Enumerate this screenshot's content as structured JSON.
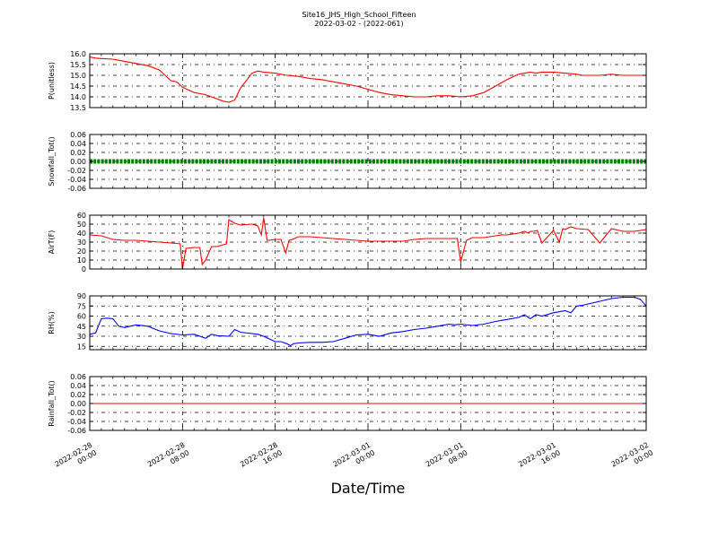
{
  "figure": {
    "title_line1": "Site16_JHS_High_School_Fifteen",
    "title_line2": "2022-03-02 - (2022-061)",
    "xlabel": "Date/Time"
  },
  "chart_data": [
    {
      "type": "line",
      "ylabel": "P(unitless)",
      "ylim": [
        13.5,
        16.0
      ],
      "yticks": [
        "13.5",
        "14.0",
        "14.5",
        "15.0",
        "15.5",
        "16.0"
      ],
      "grid": true,
      "x_unit": "hours since 2022-02-28 00:00",
      "series": [
        {
          "color": "#ff0000",
          "x": [
            0,
            0.5,
            1,
            2,
            3,
            4,
            5,
            6,
            6.5,
            7,
            7.5,
            8,
            9,
            10,
            10.5,
            11,
            11.5,
            12,
            12.5,
            13,
            14,
            14.5,
            15,
            16,
            17,
            18,
            19,
            20,
            21,
            22,
            23,
            24,
            25,
            26,
            27,
            28,
            29,
            30,
            31,
            32,
            33,
            34,
            35,
            36,
            37,
            38,
            38.5,
            39,
            40,
            41,
            42,
            42.5,
            43,
            44,
            45,
            46,
            47,
            48
          ],
          "values": [
            15.85,
            15.8,
            15.78,
            15.75,
            15.65,
            15.55,
            15.45,
            15.25,
            15.0,
            14.75,
            14.7,
            14.45,
            14.2,
            14.1,
            14.0,
            13.9,
            13.8,
            13.75,
            13.85,
            14.4,
            15.1,
            15.2,
            15.15,
            15.1,
            15.0,
            14.95,
            14.85,
            14.8,
            14.7,
            14.6,
            14.5,
            14.35,
            14.2,
            14.1,
            14.05,
            14.0,
            14.0,
            14.05,
            14.05,
            14.0,
            14.05,
            14.2,
            14.5,
            14.8,
            15.05,
            15.15,
            15.1,
            15.15,
            15.15,
            15.1,
            15.05,
            15.0,
            15.0,
            15.0,
            15.05,
            15.0,
            15.0,
            15.0
          ]
        }
      ]
    },
    {
      "type": "line",
      "ylabel": "Snowfall_Tot()",
      "ylim": [
        -0.06,
        0.06
      ],
      "yticks": [
        "-0.06",
        "-0.04",
        "-0.02",
        "0.00",
        "0.02",
        "0.04",
        "0.06"
      ],
      "grid": true,
      "x_unit": "hours since 2022-02-28 00:00",
      "series": [
        {
          "color": "#008000",
          "marker": "dot",
          "x": [
            0,
            48
          ],
          "values": [
            0.0,
            0.0
          ]
        }
      ]
    },
    {
      "type": "line",
      "ylabel": "AirT(F)",
      "ylim": [
        0,
        60
      ],
      "yticks": [
        "0",
        "10",
        "20",
        "30",
        "40",
        "50",
        "60"
      ],
      "grid": true,
      "x_unit": "hours since 2022-02-28 00:00",
      "series": [
        {
          "color": "#ff0000",
          "x": [
            0,
            1,
            2,
            3,
            4,
            5,
            6,
            7,
            7.5,
            7.8,
            8.0,
            8.3,
            9.0,
            9.5,
            9.7,
            10.0,
            10.5,
            11.0,
            11.5,
            11.8,
            12.0,
            12.5,
            13,
            14,
            14.5,
            14.8,
            15.0,
            15.3,
            15.5,
            16.0,
            16.5,
            16.9,
            17.2,
            17.5,
            18,
            19,
            20,
            21,
            22,
            23,
            24,
            25,
            26,
            27,
            28,
            29,
            30,
            31,
            31.5,
            31.7,
            32.0,
            32.5,
            33,
            34,
            35,
            35.5,
            36,
            37,
            37.5,
            37.8,
            38.0,
            38.3,
            38.6,
            39,
            40,
            40.5,
            40.8,
            41,
            41.5,
            42,
            43,
            44,
            45,
            46,
            47,
            48
          ],
          "values": [
            38,
            37,
            33,
            32,
            32,
            31,
            30,
            29,
            28.5,
            28,
            0,
            23,
            24,
            24,
            5,
            10,
            25,
            25,
            27,
            28,
            55,
            51,
            49,
            50,
            48,
            38,
            57,
            32,
            32,
            33,
            33,
            18,
            32,
            33,
            36,
            36,
            35,
            34,
            33,
            32,
            31,
            31,
            31,
            31,
            33,
            34,
            34,
            34,
            34,
            34,
            8,
            32,
            35,
            35,
            37,
            38,
            38,
            40,
            42,
            40,
            42,
            42,
            43,
            29,
            43,
            30,
            45,
            44,
            47,
            45,
            44,
            29,
            45,
            42,
            42,
            44
          ]
        }
      ]
    },
    {
      "type": "line",
      "ylabel": "RH(%)",
      "ylim": [
        10,
        90
      ],
      "yticks": [
        "15",
        "30",
        "45",
        "60",
        "75",
        "90"
      ],
      "grid": true,
      "x_unit": "hours since 2022-02-28 00:00",
      "series": [
        {
          "color": "#0000ff",
          "x": [
            0,
            0.5,
            1,
            1.5,
            2,
            2.5,
            3,
            4,
            5,
            6,
            7,
            8,
            9,
            10,
            10.5,
            11,
            12,
            12.5,
            13,
            14,
            14.5,
            15,
            15.5,
            16,
            16.5,
            17,
            17.3,
            17.6,
            18,
            19,
            20,
            21,
            22,
            23,
            24,
            25,
            26,
            27,
            28,
            29,
            30,
            31,
            31.5,
            32,
            33,
            34,
            35,
            36,
            37,
            37.5,
            38,
            38.5,
            39,
            40,
            41,
            41.5,
            42,
            42.5,
            43,
            44,
            45,
            46,
            47,
            47.5,
            48
          ],
          "values": [
            33,
            35,
            56,
            57,
            56,
            45,
            43,
            47,
            45,
            38,
            34,
            32,
            33,
            27,
            33,
            31,
            30,
            40,
            36,
            34,
            33,
            30,
            26,
            22,
            22,
            19,
            16,
            19,
            20,
            21,
            21,
            22,
            27,
            32,
            33,
            30,
            35,
            37,
            40,
            42,
            45,
            48,
            47,
            48,
            46,
            48,
            52,
            55,
            58,
            62,
            56,
            62,
            60,
            65,
            68,
            65,
            75,
            76,
            78,
            82,
            86,
            88,
            88,
            85,
            75
          ]
        }
      ]
    },
    {
      "type": "line",
      "ylabel": "Rainfall_Tot()",
      "ylim": [
        -0.06,
        0.06
      ],
      "yticks": [
        "-0.06",
        "-0.04",
        "-0.02",
        "0.00",
        "0.02",
        "0.04",
        "0.06"
      ],
      "grid": true,
      "x_unit": "hours since 2022-02-28 00:00",
      "series": [
        {
          "color": "#ff0000",
          "x": [
            0,
            48
          ],
          "values": [
            0.0,
            0.0
          ]
        }
      ]
    }
  ],
  "x_ticks": [
    {
      "hours": 0,
      "line1": "2022-02-28",
      "line2": "00:00"
    },
    {
      "hours": 8,
      "line1": "2022-02-28",
      "line2": "08:00"
    },
    {
      "hours": 16,
      "line1": "2022-02-28",
      "line2": "16:00"
    },
    {
      "hours": 24,
      "line1": "2022-03-01",
      "line2": "00:00"
    },
    {
      "hours": 32,
      "line1": "2022-03-01",
      "line2": "08:00"
    },
    {
      "hours": 40,
      "line1": "2022-03-01",
      "line2": "16:00"
    },
    {
      "hours": 48,
      "line1": "2022-03-02",
      "line2": "00:00"
    }
  ]
}
